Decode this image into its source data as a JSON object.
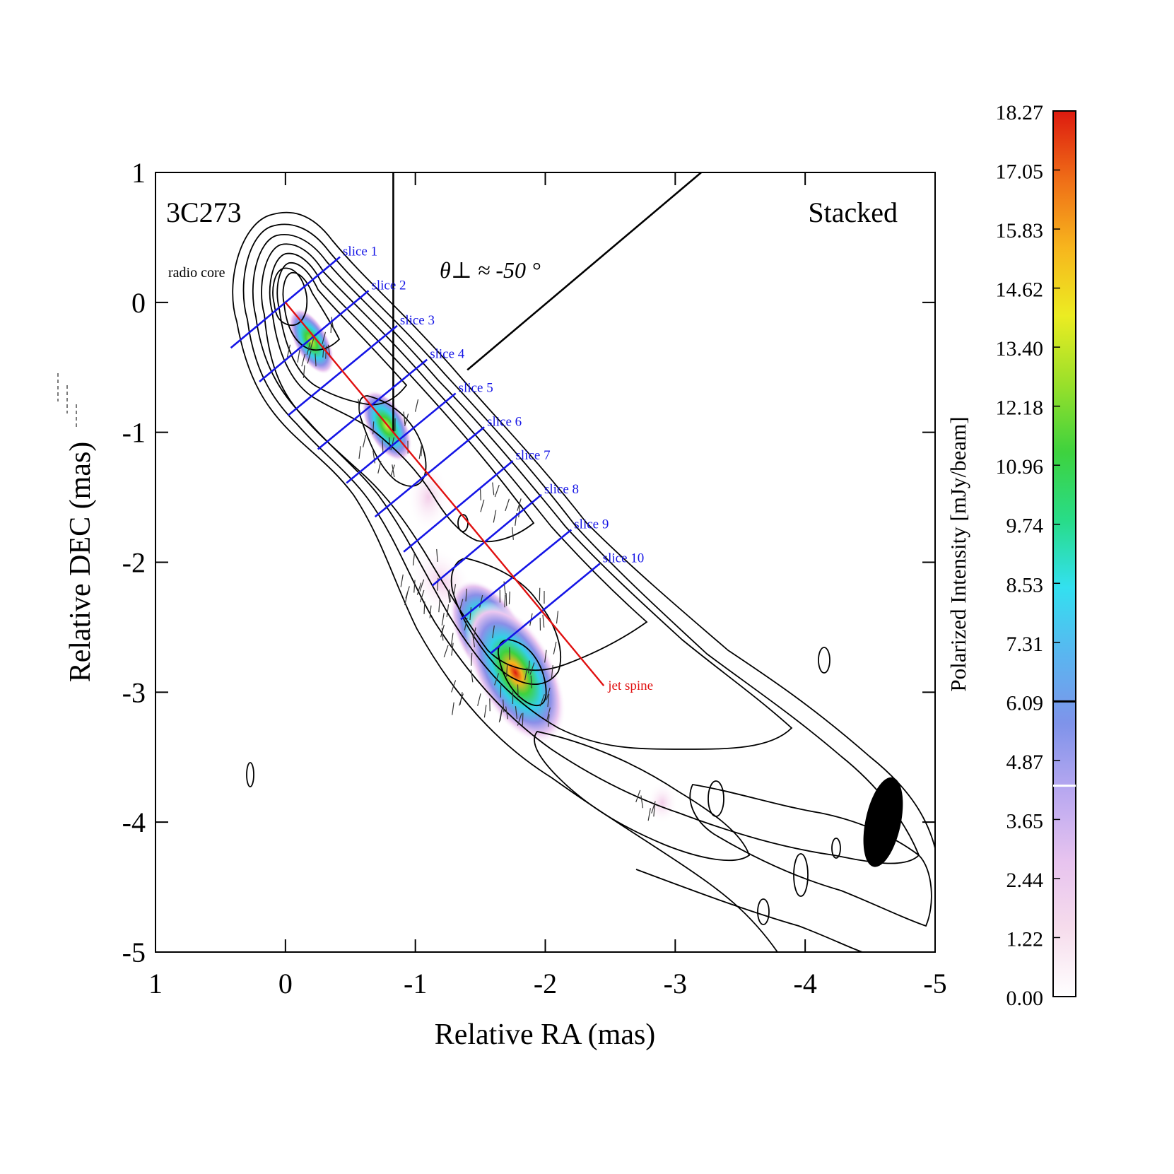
{
  "chart_data": {
    "type": "contour-map",
    "title": "3C273",
    "subtitle": "Stacked",
    "xlabel": "Relative RA (mas)",
    "ylabel": "Relative DEC (mas)",
    "xlim": [
      1,
      -5
    ],
    "ylim": [
      -5,
      1
    ],
    "x_ticks": [
      1,
      0,
      -1,
      -2,
      -3,
      -4,
      -5
    ],
    "x_tick_labels": [
      "1",
      "0",
      "-1",
      "-2",
      "-3",
      "-4",
      "-5"
    ],
    "y_ticks": [
      1,
      0,
      -1,
      -2,
      -3,
      -4,
      -5
    ],
    "y_tick_labels": [
      "1",
      "0",
      "-1",
      "-2",
      "-3",
      "-4",
      "-5"
    ],
    "annotations": {
      "radio_core": "radio core",
      "angle": "θ⊥ ≈ -50 °",
      "jet_spine": "jet spine"
    },
    "jet_spine": {
      "start": [
        0,
        0
      ],
      "end": [
        -2.45,
        -2.95
      ],
      "color": "#e01010"
    },
    "slice_color": "#1515e6",
    "slices": [
      {
        "label": "slice 1",
        "start": [
          0.42,
          -0.35
        ],
        "end": [
          -0.42,
          0.35
        ]
      },
      {
        "label": "slice 2",
        "start": [
          0.2,
          -0.61
        ],
        "end": [
          -0.64,
          0.09
        ]
      },
      {
        "label": "slice 3",
        "start": [
          -0.02,
          -0.87
        ],
        "end": [
          -0.86,
          -0.18
        ]
      },
      {
        "label": "slice 4",
        "start": [
          -0.25,
          -1.13
        ],
        "end": [
          -1.09,
          -0.44
        ]
      },
      {
        "label": "slice 5",
        "start": [
          -0.47,
          -1.39
        ],
        "end": [
          -1.31,
          -0.7
        ]
      },
      {
        "label": "slice 6",
        "start": [
          -0.69,
          -1.65
        ],
        "end": [
          -1.53,
          -0.96
        ]
      },
      {
        "label": "slice 7",
        "start": [
          -0.91,
          -1.92
        ],
        "end": [
          -1.75,
          -1.22
        ]
      },
      {
        "label": "slice 8",
        "start": [
          -1.13,
          -2.18
        ],
        "end": [
          -1.97,
          -1.48
        ]
      },
      {
        "label": "slice 9",
        "start": [
          -1.35,
          -2.44
        ],
        "end": [
          -2.2,
          -1.75
        ]
      },
      {
        "label": "slice 10",
        "start": [
          -1.58,
          -2.7
        ],
        "end": [
          -2.42,
          -2.01
        ]
      }
    ],
    "reference_lines": [
      {
        "name": "vertical-reference",
        "start": [
          -0.83,
          1.0
        ],
        "end": [
          -0.83,
          -1.0
        ]
      },
      {
        "name": "angle-reference",
        "start": [
          -1.4,
          -0.52
        ],
        "end": [
          -3.2,
          1.0
        ]
      }
    ],
    "polarized_blobs": [
      {
        "center": [
          -0.2,
          -0.3
        ],
        "rx": 0.13,
        "ry": 0.28,
        "peak": 14.8
      },
      {
        "center": [
          -0.78,
          -0.95
        ],
        "rx": 0.15,
        "ry": 0.3,
        "peak": 13.2
      },
      {
        "center": [
          -1.57,
          -2.55
        ],
        "rx": 0.25,
        "ry": 0.45,
        "peak": 12.5
      },
      {
        "center": [
          -1.77,
          -2.85
        ],
        "rx": 0.3,
        "ry": 0.6,
        "peak": 18.27
      }
    ],
    "beam": {
      "center": [
        -4.6,
        -4.0
      ],
      "major": 0.38,
      "minor": 0.16
    },
    "colorbar": {
      "label": "Polarized Intensity [mJy/beam]",
      "min": 0.0,
      "max": 18.27,
      "ticks": [
        "18.27",
        "17.05",
        "15.83",
        "14.62",
        "13.40",
        "12.18",
        "10.96",
        "9.74",
        "8.53",
        "7.31",
        "6.09",
        "4.87",
        "3.65",
        "2.44",
        "1.22",
        "0.00"
      ],
      "markers": [
        {
          "value": 6.09,
          "color": "#000000"
        },
        {
          "value": 4.35,
          "color": "#ffffff"
        }
      ],
      "colors": [
        "#ffffff",
        "#f6dcec",
        "#e7c3ef",
        "#b9a8f0",
        "#7f93ea",
        "#5ab5f0",
        "#33e0f0",
        "#28dc88",
        "#3ed23e",
        "#9ae02a",
        "#ecec22",
        "#f7b51d",
        "#ef6d17",
        "#dd1a0f"
      ]
    }
  }
}
